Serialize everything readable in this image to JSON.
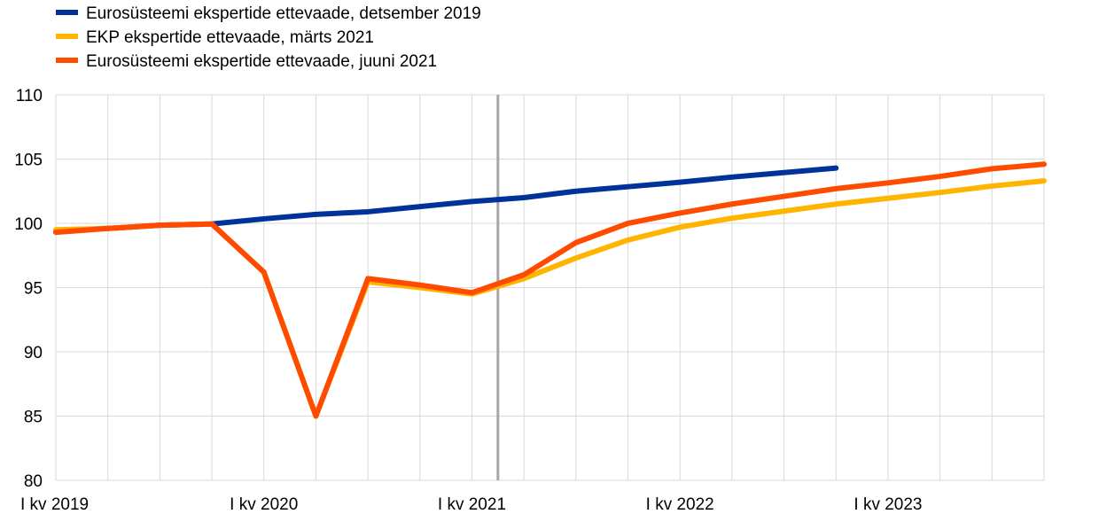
{
  "chart_data": {
    "type": "line",
    "title": "",
    "xlabel": "",
    "ylabel": "",
    "ylim": [
      80,
      110
    ],
    "yticks": [
      80,
      85,
      90,
      95,
      100,
      105,
      110
    ],
    "x_count": 20,
    "x_tick_labels": [
      {
        "index": 0,
        "label": "I kv 2019"
      },
      {
        "index": 4,
        "label": "I kv 2020"
      },
      {
        "index": 8,
        "label": "I kv 2021"
      },
      {
        "index": 12,
        "label": "I kv 2022"
      },
      {
        "index": 16,
        "label": "I kv 2023"
      }
    ],
    "grid": true,
    "legend_position": "top-left",
    "vertical_marker": {
      "x": 8.5,
      "color": "#A6A6A6"
    },
    "series": [
      {
        "name": "Eurosüsteemi ekspertide ettevaade, detsember 2019",
        "color": "#003299",
        "start_index": 0,
        "values": [
          99.4,
          99.6,
          99.85,
          99.95,
          100.35,
          100.7,
          100.9,
          101.3,
          101.7,
          102.0,
          102.5,
          102.85,
          103.2,
          103.6,
          103.95,
          104.3
        ]
      },
      {
        "name": "EKP ekspertide ettevaade, märts 2021",
        "color": "#FFB400",
        "start_index": 0,
        "values": [
          99.5,
          99.6,
          99.85,
          99.95,
          96.2,
          85.0,
          95.45,
          95.0,
          94.5,
          95.7,
          97.3,
          98.7,
          99.7,
          100.4,
          100.95,
          101.5,
          101.95,
          102.4,
          102.9,
          103.3
        ]
      },
      {
        "name": "Eurosüsteemi ekspertide ettevaade, juuni 2021",
        "color": "#FF4B00",
        "start_index": 0,
        "values": [
          99.3,
          99.6,
          99.85,
          99.95,
          96.2,
          85.0,
          95.7,
          95.2,
          94.6,
          96.0,
          98.5,
          100.0,
          100.8,
          101.5,
          102.1,
          102.7,
          103.15,
          103.65,
          104.25,
          104.6
        ]
      }
    ]
  }
}
